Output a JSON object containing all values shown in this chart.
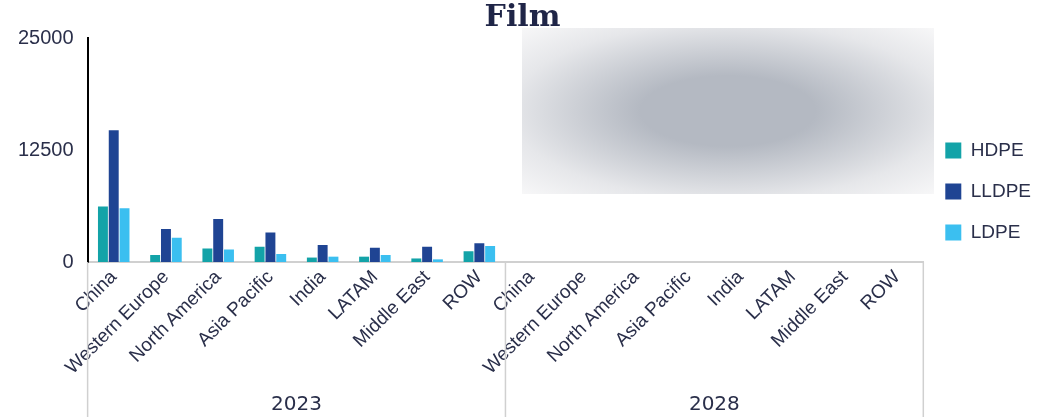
{
  "chart_data": {
    "type": "bar",
    "title": "Film",
    "categories": [
      "China",
      "Western Europe",
      "North America",
      "Asia Pacific",
      "India",
      "LATAM",
      "Middle East",
      "ROW",
      "China",
      "Western Europe",
      "North America",
      "Asia Pacific",
      "India",
      "LATAM",
      "Middle East",
      "ROW"
    ],
    "series": [
      {
        "name": "HDPE",
        "color": "#13a3a8",
        "values": [
          6200,
          800,
          1500,
          1700,
          500,
          600,
          400,
          1200,
          null,
          null,
          null,
          null,
          null,
          null,
          null,
          null
        ]
      },
      {
        "name": "LLDPE",
        "color": "#1f4493",
        "values": [
          14700,
          3700,
          4800,
          3300,
          1900,
          1600,
          1700,
          2100,
          null,
          null,
          null,
          null,
          null,
          null,
          null,
          null
        ]
      },
      {
        "name": "LDPE",
        "color": "#3bbff0",
        "values": [
          6000,
          2700,
          1400,
          900,
          600,
          800,
          300,
          1800,
          null,
          null,
          null,
          null,
          null,
          null,
          null,
          null
        ]
      }
    ],
    "annotations": [
      "2023",
      "2028"
    ],
    "ylim": [
      0,
      25000
    ],
    "yticks": [
      0,
      12500,
      25000
    ],
    "grid": false,
    "legend": "right"
  }
}
